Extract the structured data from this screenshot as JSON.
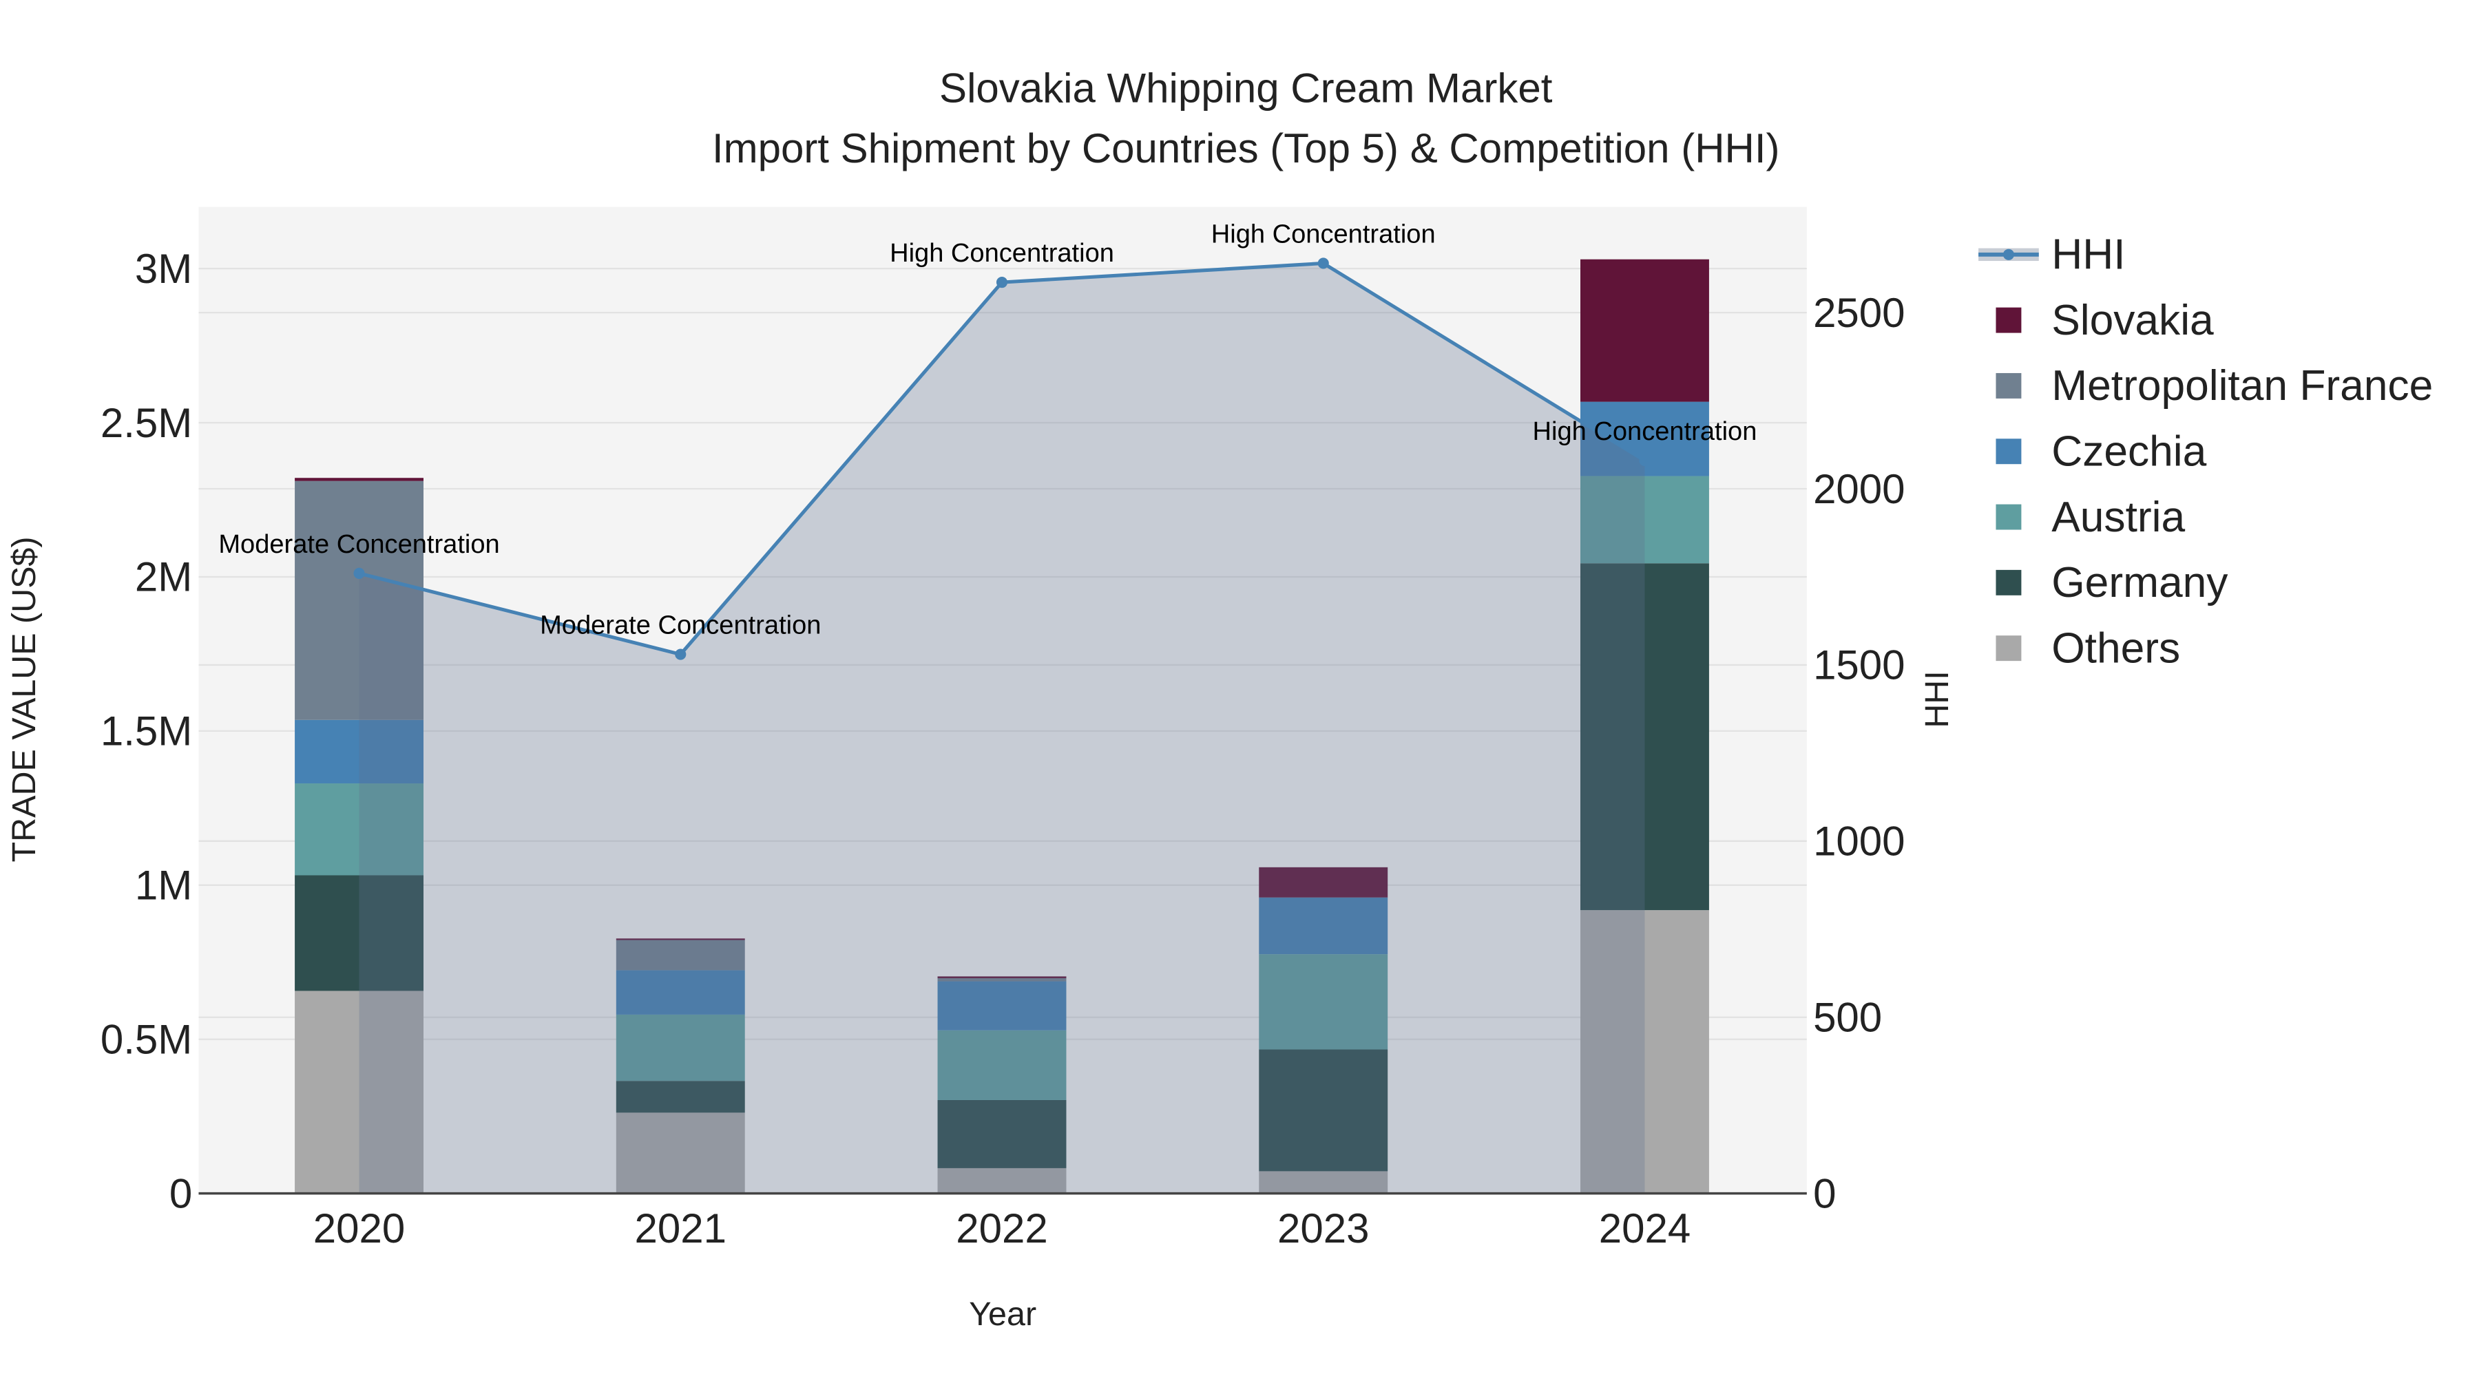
{
  "chart_data": {
    "type": "bar",
    "title": "Slovakia Whipping Cream Market",
    "subtitle": "Import Shipment by Countries (Top 5) & Competition (HHI)",
    "xlabel": "Year",
    "ylabel": "TRADE VALUE (US$)",
    "y2label": "HHI",
    "categories": [
      "2020",
      "2021",
      "2022",
      "2023",
      "2024"
    ],
    "ylim": [
      0,
      3200000
    ],
    "y2lim": [
      0,
      2800
    ],
    "yticks": [
      {
        "v": 0,
        "label": "0"
      },
      {
        "v": 500000,
        "label": "0.5M"
      },
      {
        "v": 1000000,
        "label": "1M"
      },
      {
        "v": 1500000,
        "label": "1.5M"
      },
      {
        "v": 2000000,
        "label": "2M"
      },
      {
        "v": 2500000,
        "label": "2.5M"
      },
      {
        "v": 3000000,
        "label": "3M"
      }
    ],
    "y2ticks": [
      {
        "v": 0,
        "label": "0"
      },
      {
        "v": 500,
        "label": "500"
      },
      {
        "v": 1000,
        "label": "1000"
      },
      {
        "v": 1500,
        "label": "1500"
      },
      {
        "v": 2000,
        "label": "2000"
      },
      {
        "v": 2500,
        "label": "2500"
      }
    ],
    "series": [
      {
        "name": "Others",
        "color": "#a9a9a9",
        "values": [
          657000,
          262000,
          82000,
          72000,
          919000
        ]
      },
      {
        "name": "Germany",
        "color": "#2f4f4f",
        "values": [
          375000,
          103000,
          221000,
          395000,
          1125000
        ]
      },
      {
        "name": "Austria",
        "color": "#5f9ea0",
        "values": [
          298000,
          215000,
          226000,
          309000,
          283000
        ]
      },
      {
        "name": "Czechia",
        "color": "#4682b4",
        "values": [
          206000,
          144000,
          159000,
          184000,
          241000
        ]
      },
      {
        "name": "Metropolitan France",
        "color": "#708090",
        "values": [
          775000,
          98000,
          10000,
          0,
          0
        ]
      },
      {
        "name": "Slovakia",
        "color": "#601438",
        "values": [
          10000,
          5000,
          6000,
          98000,
          462000
        ]
      }
    ],
    "hhi": {
      "name": "HHI",
      "color": "#4682b4",
      "values": [
        1760,
        1530,
        2586,
        2640,
        2080
      ],
      "labels": [
        "Moderate Concentration",
        "Moderate Concentration",
        "High Concentration",
        "High Concentration",
        "High Concentration"
      ]
    },
    "legend": [
      "HHI",
      "Slovakia",
      "Metropolitan France",
      "Czechia",
      "Austria",
      "Germany",
      "Others"
    ],
    "legend_position": "right",
    "grid": true
  }
}
